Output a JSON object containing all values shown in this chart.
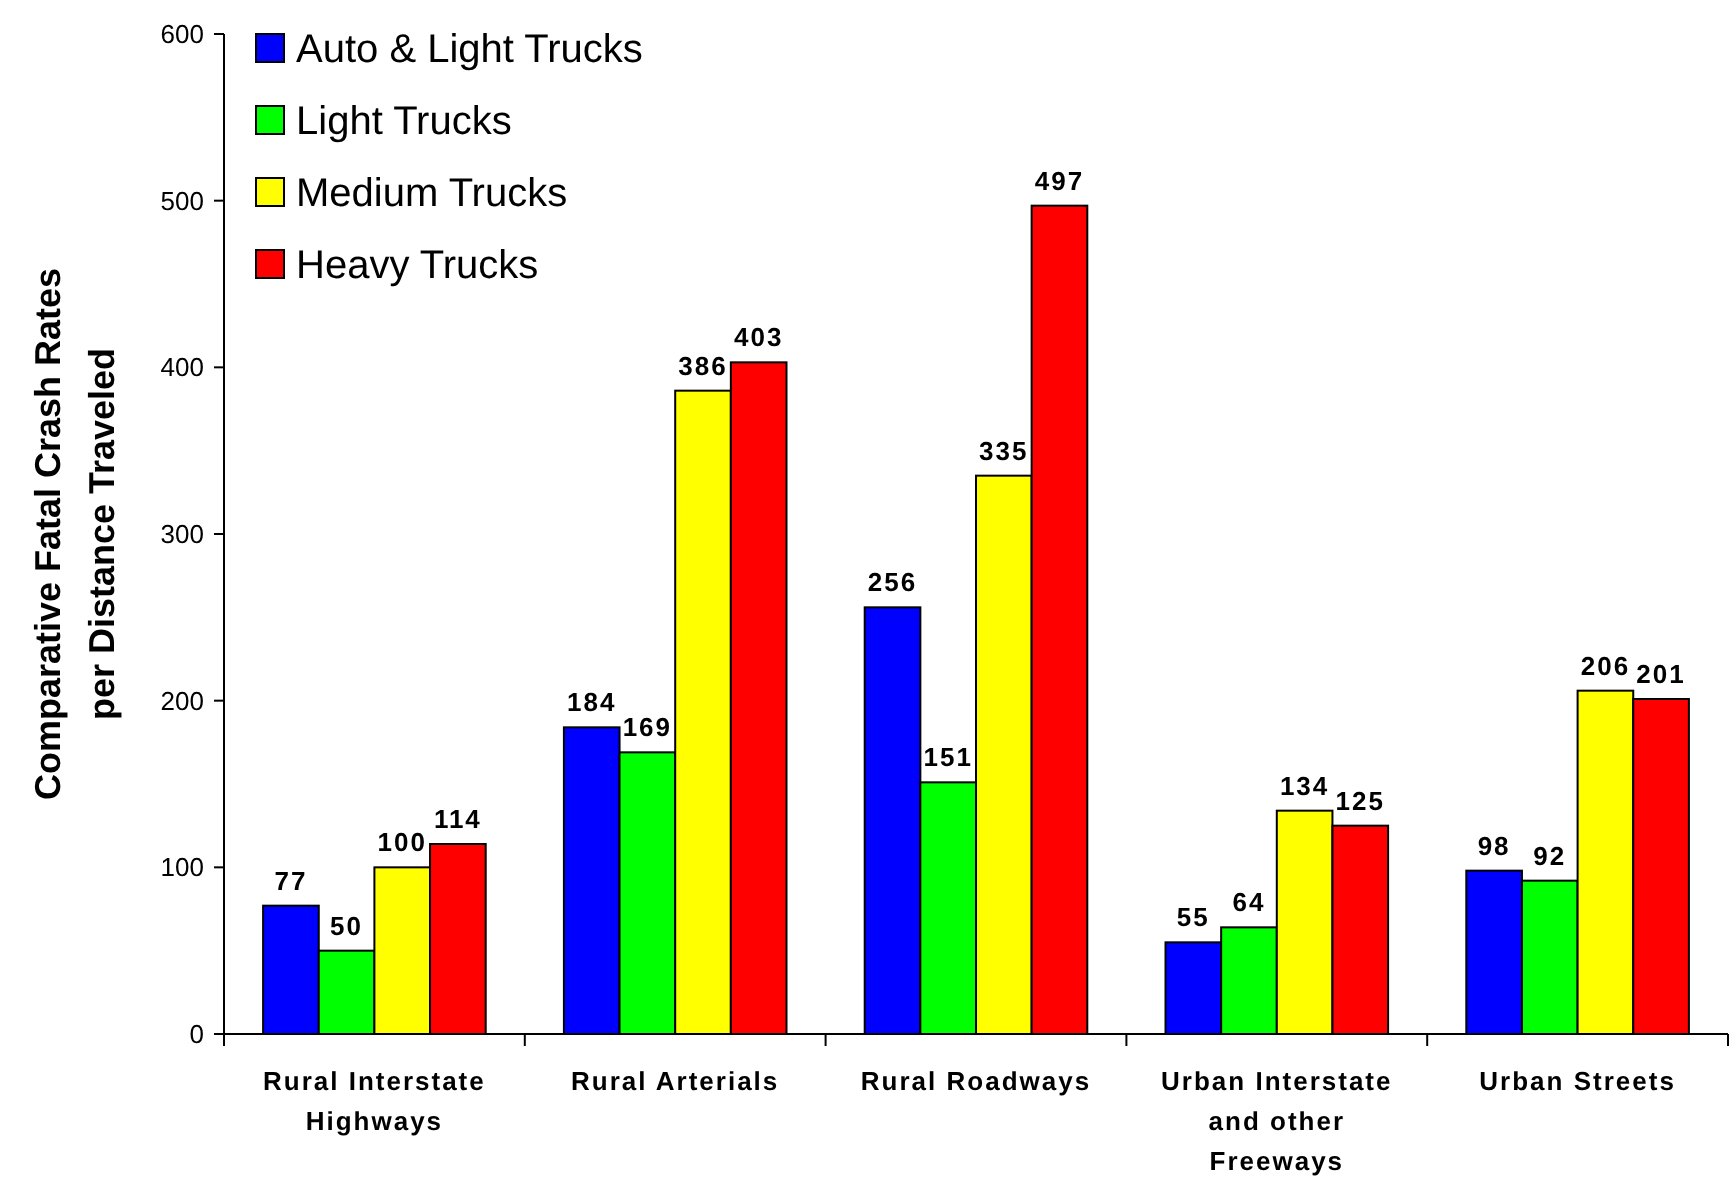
{
  "chart_data": {
    "type": "bar",
    "ylabel": "Comparative Fatal Crash Rates per Distance Traveled",
    "categories": [
      "Rural Interstate Highways",
      "Rural Arterials",
      "Rural Roadways",
      "Urban Interstate and other Freeways",
      "Urban Streets"
    ],
    "series": [
      {
        "name": "Auto & Light Trucks",
        "color": "#0000ff",
        "values": [
          77,
          184,
          256,
          55,
          98
        ]
      },
      {
        "name": "Light Trucks",
        "color": "#00ff00",
        "values": [
          50,
          169,
          151,
          64,
          92
        ]
      },
      {
        "name": "Medium Trucks",
        "color": "#ffff00",
        "values": [
          100,
          386,
          335,
          134,
          206
        ]
      },
      {
        "name": "Heavy Trucks",
        "color": "#ff0000",
        "values": [
          114,
          403,
          497,
          125,
          201
        ]
      }
    ],
    "ylim": [
      0,
      600
    ],
    "yticks": [
      0,
      100,
      200,
      300,
      400,
      500,
      600
    ],
    "data_labels": true,
    "legend": "top left",
    "grid": false
  }
}
